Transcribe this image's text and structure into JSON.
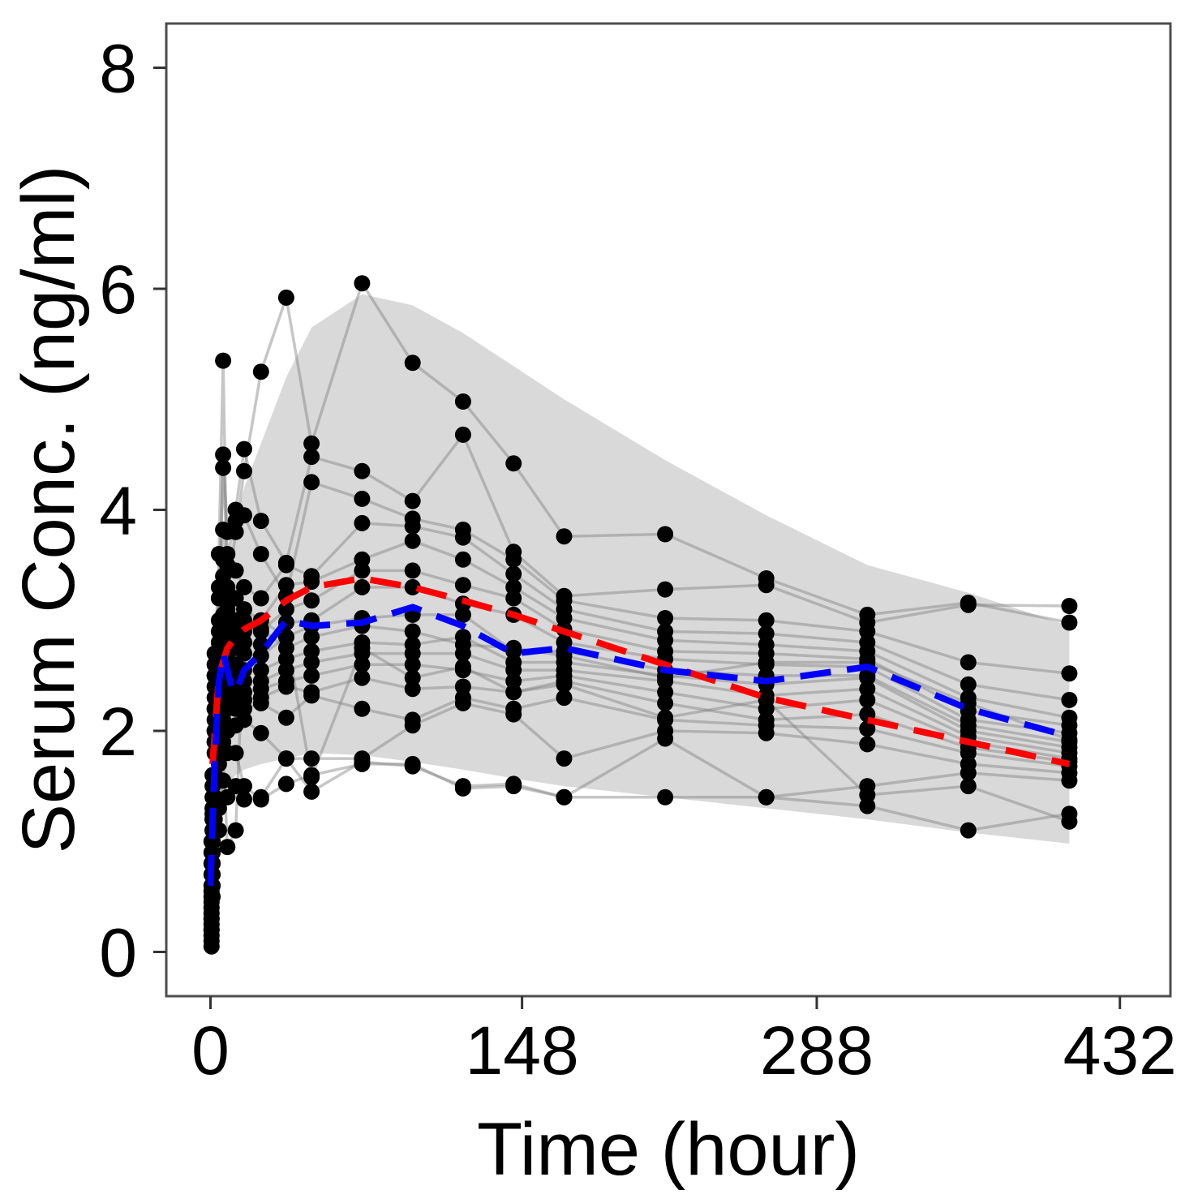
{
  "chart_data": {
    "type": "line",
    "title": "",
    "xlabel": "Time (hour)",
    "ylabel": "Serum Conc.  (ng/ml)",
    "xlim": [
      -21,
      456
    ],
    "ylim": [
      -0.4,
      8.4
    ],
    "xticks": [
      0,
      148,
      288,
      432
    ],
    "yticks": [
      0,
      2,
      4,
      6,
      8
    ],
    "grid": false,
    "legend": "none",
    "colors": {
      "band": "#d9d9d9",
      "subject_line": "#808080",
      "points": "#000000",
      "median_observed": "#0000ff",
      "median_predicted": "#ff0000",
      "frame": "#4d4d4d"
    },
    "prediction_interval": {
      "name": "90% prediction interval",
      "x": [
        1,
        4,
        8,
        12,
        16,
        24,
        36,
        48,
        72,
        96,
        120,
        144,
        168,
        216,
        264,
        312,
        360,
        408
      ],
      "lower": [
        0.6,
        1.3,
        1.5,
        1.6,
        1.65,
        1.7,
        1.75,
        1.8,
        1.78,
        1.72,
        1.65,
        1.57,
        1.5,
        1.4,
        1.3,
        1.2,
        1.08,
        0.98
      ],
      "upper": [
        2.2,
        3.0,
        3.5,
        3.9,
        4.2,
        4.6,
        5.2,
        5.65,
        5.95,
        5.85,
        5.6,
        5.3,
        5.0,
        4.45,
        3.95,
        3.5,
        3.25,
        2.95
      ]
    },
    "median_predicted": {
      "name": "predicted median",
      "x": [
        1,
        4,
        8,
        12,
        16,
        24,
        36,
        48,
        72,
        96,
        120,
        144,
        168,
        216,
        264,
        312,
        360,
        408
      ],
      "y": [
        1.7,
        2.5,
        2.75,
        2.85,
        2.92,
        3.0,
        3.18,
        3.3,
        3.38,
        3.3,
        3.18,
        3.05,
        2.9,
        2.6,
        2.3,
        2.1,
        1.9,
        1.7
      ]
    },
    "median_observed": {
      "name": "observed median",
      "x": [
        0,
        1,
        2,
        3,
        4,
        6,
        8,
        10,
        12,
        16,
        24,
        36,
        48,
        72,
        96,
        120,
        144,
        168,
        216,
        264,
        312,
        360,
        408
      ],
      "y": [
        0.6,
        1.2,
        1.7,
        2.1,
        2.45,
        2.7,
        2.55,
        2.4,
        2.35,
        2.55,
        2.7,
        3.0,
        2.95,
        2.98,
        3.12,
        2.95,
        2.7,
        2.75,
        2.55,
        2.45,
        2.58,
        2.2,
        1.95
      ]
    },
    "subjects": [
      {
        "x": [
          0.5,
          1,
          2,
          4,
          6,
          8,
          12,
          16,
          24,
          36,
          48,
          72,
          96,
          120,
          144,
          168,
          216,
          264,
          312,
          360,
          408
        ],
        "y": [
          0.2,
          1.0,
          2.5,
          3.6,
          5.35,
          3.2,
          3.8,
          4.35,
          5.25,
          5.92,
          4.6,
          6.05,
          5.33,
          4.98,
          4.42,
          3.76,
          3.78,
          3.38,
          3.05,
          3.16,
          2.98
        ]
      },
      {
        "x": [
          0.5,
          1,
          2,
          4,
          6,
          8,
          12,
          16,
          24,
          36,
          48,
          72,
          96,
          120,
          144,
          168,
          216,
          264,
          312,
          360,
          408
        ],
        "y": [
          0.05,
          0.5,
          1.9,
          2.8,
          4.5,
          3.8,
          4.0,
          4.55,
          3.9,
          3.52,
          4.48,
          4.35,
          4.08,
          4.68,
          3.62,
          3.22,
          3.28,
          3.32,
          2.98,
          3.14,
          3.13
        ]
      },
      {
        "x": [
          0.5,
          1,
          2,
          4,
          6,
          8,
          12,
          16,
          24,
          36,
          48,
          72,
          96,
          120,
          144,
          168,
          216,
          264,
          312,
          360,
          408
        ],
        "y": [
          0.1,
          0.7,
          2.0,
          3.2,
          4.38,
          3.6,
          3.9,
          3.95,
          3.6,
          3.22,
          4.25,
          4.1,
          3.92,
          3.82,
          3.55,
          3.18,
          3.02,
          3.0,
          2.9,
          2.62,
          2.52
        ]
      },
      {
        "x": [
          0.5,
          1,
          2,
          4,
          6,
          8,
          12,
          16,
          24,
          36,
          48,
          72,
          96,
          120,
          144,
          168,
          216,
          264,
          312,
          360,
          408
        ],
        "y": [
          0.2,
          1.0,
          2.2,
          3.3,
          3.82,
          3.5,
          3.45,
          3.3,
          3.2,
          3.5,
          3.4,
          3.88,
          3.85,
          3.75,
          3.42,
          3.1,
          2.9,
          2.88,
          2.8,
          2.42,
          2.28
        ]
      },
      {
        "x": [
          0.5,
          1,
          2,
          4,
          6,
          8,
          12,
          16,
          24,
          36,
          48,
          72,
          96,
          120,
          144,
          168,
          216,
          264,
          312,
          360,
          408
        ],
        "y": [
          0.3,
          1.2,
          2.4,
          3.0,
          3.55,
          3.3,
          3.2,
          3.1,
          3.0,
          3.32,
          3.35,
          3.55,
          3.72,
          3.55,
          3.3,
          3.02,
          2.82,
          2.78,
          2.72,
          2.3,
          2.12
        ]
      },
      {
        "x": [
          0.5,
          1,
          2,
          4,
          6,
          8,
          12,
          16,
          24,
          36,
          48,
          72,
          96,
          120,
          144,
          168,
          216,
          264,
          312,
          360,
          408
        ],
        "y": [
          0.25,
          0.9,
          2.1,
          2.9,
          3.4,
          3.1,
          3.0,
          2.95,
          2.9,
          3.1,
          3.18,
          3.45,
          3.45,
          3.32,
          3.2,
          2.92,
          2.72,
          2.7,
          2.65,
          2.18,
          2.05
        ]
      },
      {
        "x": [
          0.5,
          1,
          2,
          4,
          6,
          8,
          12,
          16,
          24,
          36,
          48,
          72,
          96,
          120,
          144,
          168,
          216,
          264,
          312,
          360,
          408
        ],
        "y": [
          0.4,
          1.1,
          2.3,
          2.8,
          3.2,
          2.95,
          2.85,
          2.8,
          2.78,
          2.98,
          3.0,
          3.3,
          3.3,
          3.15,
          3.05,
          2.8,
          2.65,
          2.6,
          2.58,
          2.1,
          1.98
        ]
      },
      {
        "x": [
          0.5,
          1,
          2,
          4,
          6,
          8,
          12,
          16,
          24,
          36,
          48,
          72,
          96,
          120,
          144,
          168,
          216,
          264,
          312,
          360,
          408
        ],
        "y": [
          0.15,
          0.6,
          1.8,
          2.6,
          3.0,
          2.85,
          2.75,
          2.7,
          2.68,
          2.85,
          2.95,
          3.02,
          3.05,
          3.05,
          2.72,
          2.72,
          2.55,
          2.5,
          2.5,
          2.05,
          1.9
        ]
      },
      {
        "x": [
          0.5,
          1,
          2,
          4,
          6,
          8,
          12,
          16,
          24,
          36,
          48,
          72,
          96,
          120,
          144,
          168,
          216,
          264,
          312,
          360,
          408
        ],
        "y": [
          0.35,
          1.3,
          2.5,
          2.7,
          2.9,
          2.7,
          2.6,
          2.55,
          2.55,
          2.65,
          2.72,
          2.8,
          2.78,
          2.85,
          2.62,
          2.62,
          2.5,
          2.42,
          2.48,
          2.0,
          1.85
        ]
      },
      {
        "x": [
          0.5,
          1,
          2,
          4,
          6,
          8,
          12,
          16,
          24,
          36,
          48,
          72,
          96,
          120,
          144,
          168,
          216,
          264,
          312,
          360,
          408
        ],
        "y": [
          0.45,
          1.4,
          2.6,
          2.5,
          2.75,
          2.55,
          2.5,
          2.45,
          2.45,
          2.55,
          2.62,
          2.7,
          2.7,
          2.7,
          2.55,
          2.55,
          2.45,
          2.32,
          2.38,
          1.95,
          1.8
        ]
      },
      {
        "x": [
          0.5,
          1,
          2,
          4,
          6,
          8,
          12,
          16,
          24,
          36,
          48,
          72,
          96,
          120,
          144,
          168,
          216,
          264,
          312,
          360,
          408
        ],
        "y": [
          0.5,
          1.5,
          2.2,
          2.45,
          2.6,
          2.4,
          2.4,
          2.35,
          2.38,
          2.45,
          2.5,
          2.6,
          2.6,
          2.55,
          2.45,
          2.5,
          2.35,
          2.2,
          2.28,
          1.9,
          1.75
        ]
      },
      {
        "x": [
          0.5,
          1,
          2,
          4,
          6,
          8,
          12,
          16,
          24,
          36,
          48,
          72,
          96,
          120,
          144,
          168,
          216,
          264,
          312,
          360,
          408
        ],
        "y": [
          0.6,
          1.6,
          2.0,
          2.3,
          2.5,
          2.3,
          2.3,
          2.28,
          2.3,
          2.4,
          2.35,
          2.48,
          2.38,
          2.4,
          2.35,
          2.45,
          2.25,
          2.1,
          2.15,
          1.85,
          1.72
        ]
      },
      {
        "x": [
          0.5,
          1,
          2,
          4,
          6,
          8,
          12,
          16,
          24,
          36,
          48,
          72,
          96,
          120,
          144,
          168,
          216,
          264,
          312,
          360,
          408
        ],
        "y": [
          0.7,
          1.1,
          1.9,
          2.2,
          2.3,
          2.2,
          2.2,
          2.2,
          2.25,
          2.12,
          2.32,
          2.2,
          2.1,
          2.3,
          2.2,
          2.3,
          2.1,
          2.05,
          2.02,
          1.8,
          1.68
        ]
      },
      {
        "x": [
          0.5,
          1,
          2,
          4,
          6,
          8,
          12,
          16,
          24,
          36,
          48,
          72,
          96,
          120,
          144,
          168,
          216,
          264,
          312,
          360,
          408
        ],
        "y": [
          0.8,
          1.2,
          1.6,
          2.0,
          2.1,
          2.0,
          2.05,
          2.1,
          1.98,
          1.75,
          1.75,
          1.75,
          2.05,
          2.25,
          2.15,
          1.75,
          2.0,
          1.98,
          1.88,
          1.7,
          1.62
        ]
      },
      {
        "x": [
          0.5,
          1,
          2,
          4,
          6,
          8,
          12,
          16,
          24,
          36,
          48,
          72,
          96,
          120,
          144,
          168,
          216,
          264,
          312,
          360,
          408
        ],
        "y": [
          0.9,
          1.0,
          1.4,
          1.7,
          1.9,
          1.8,
          1.8,
          1.5,
          1.38,
          1.52,
          1.6,
          1.7,
          1.7,
          1.48,
          1.5,
          1.4,
          1.93,
          1.4,
          1.5,
          1.62,
          1.55
        ]
      },
      {
        "x": [
          0.5,
          1,
          2,
          4,
          6,
          8,
          12,
          16,
          24,
          36,
          48,
          72,
          96,
          120,
          144,
          168,
          216,
          264,
          312,
          360,
          408
        ],
        "y": [
          1.0,
          0.9,
          1.2,
          1.3,
          1.55,
          1.4,
          1.5,
          1.38,
          1.4,
          1.75,
          1.45,
          1.72,
          1.68,
          1.5,
          1.52,
          1.4,
          1.4,
          1.4,
          1.32,
          1.1,
          1.25
        ]
      },
      {
        "x": [
          0.5,
          1,
          2,
          4,
          6,
          8,
          12,
          16,
          24,
          36,
          48,
          72,
          96,
          120,
          144,
          168,
          216,
          264,
          312,
          360,
          408
        ],
        "y": [
          0.3,
          0.8,
          1.1,
          1.1,
          1.8,
          0.95,
          1.1,
          2.9,
          3.0,
          2.85,
          1.58,
          2.75,
          2.48,
          2.58,
          2.35,
          2.42,
          2.12,
          2.28,
          1.42,
          1.5,
          1.18
        ]
      },
      {
        "x": [
          0.5,
          1,
          2,
          4,
          6,
          8,
          12,
          16,
          24,
          36,
          48,
          72,
          96,
          120,
          144,
          168,
          216,
          264,
          312,
          360,
          408
        ],
        "y": [
          0.55,
          1.25,
          2.7,
          2.35,
          3.05,
          2.65,
          2.95,
          3.0,
          2.92,
          2.75,
          2.85,
          2.95,
          2.9,
          2.78,
          2.75,
          2.68,
          2.48,
          2.62,
          2.62,
          2.25,
          1.92
        ]
      }
    ]
  }
}
